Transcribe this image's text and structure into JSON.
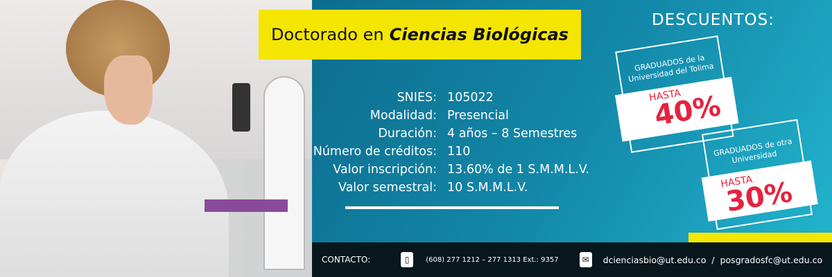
{
  "title": {
    "regular": "Doctorado en",
    "bold": "Ciencias Biológicas"
  },
  "info": [
    {
      "label": "SNIES:",
      "value": "105022"
    },
    {
      "label": "Modalidad:",
      "value": "Presencial"
    },
    {
      "label": "Duración:",
      "value": "4 años – 8 Semestres"
    },
    {
      "label": "Número de créditos:",
      "value": "110"
    },
    {
      "label": "Valor inscripción:",
      "value": "13.60% de 1 S.M.M.L.V."
    },
    {
      "label": "Valor semestral:",
      "value": "10 S.M.M.L.V."
    }
  ],
  "discounts": {
    "heading": "DESCUENTOS:",
    "items": [
      {
        "line1": "GRADUADOS de la",
        "line2": "Universidad del Tolima",
        "prefix": "HASTA",
        "percent": "40%"
      },
      {
        "line1": "GRADUADOS de otra",
        "line2": "Universidad",
        "prefix": "HASTA",
        "percent": "30%"
      }
    ]
  },
  "footer": {
    "label": "CONTACTO:",
    "phone_icon": "phone-icon",
    "phone": "(608) 277 1212 – 277 1313 Ext.: 9357",
    "mail_icon": "mail-icon",
    "email1": "dcienciasbio@ut.edu.co",
    "separator": "/",
    "email2": "posgradosfc@ut.edu.co"
  },
  "colors": {
    "yellow": "#f4e600",
    "red": "#e5223f",
    "teal": "#1387a8"
  }
}
